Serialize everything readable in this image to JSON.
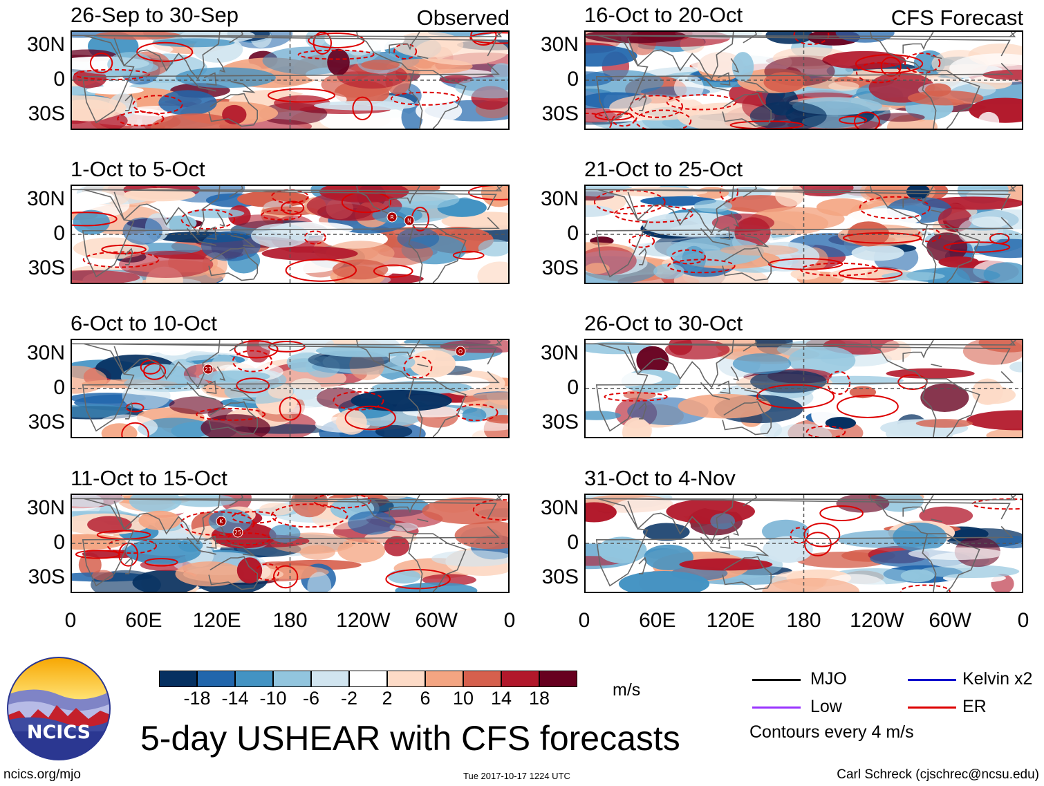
{
  "chart_data": {
    "type": "heatmap",
    "title": "5-day USHEAR with CFS forecasts",
    "variable": "USHEAR",
    "units": "m/s",
    "columns": [
      {
        "label": "Observed",
        "panels": [
          {
            "title": "26-Sep to 30-Sep"
          },
          {
            "title": "1-Oct to 5-Oct"
          },
          {
            "title": "6-Oct to 10-Oct"
          },
          {
            "title": "11-Oct to 15-Oct"
          }
        ]
      },
      {
        "label": "CFS Forecast",
        "panels": [
          {
            "title": "16-Oct to 20-Oct"
          },
          {
            "title": "21-Oct to 25-Oct"
          },
          {
            "title": "26-Oct to 30-Oct"
          },
          {
            "title": "31-Oct to 4-Nov"
          }
        ]
      }
    ],
    "ylabels": [
      "30N",
      "0",
      "30S"
    ],
    "xlabels": [
      "0",
      "60E",
      "120E",
      "180",
      "120W",
      "60W",
      "0"
    ],
    "colorbar": {
      "ticks": [
        "-18",
        "-14",
        "-10",
        "-6",
        "-2",
        "2",
        "6",
        "10",
        "14",
        "18"
      ],
      "colors": [
        "#053061",
        "#2166ac",
        "#4393c3",
        "#92c5de",
        "#d1e5f0",
        "#ffffff",
        "#fddbc7",
        "#f4a582",
        "#d6604d",
        "#b2182b",
        "#67001f"
      ]
    },
    "storm_markers": [
      {
        "panel": 1,
        "label": "R"
      },
      {
        "panel": 1,
        "label": "N"
      },
      {
        "panel": 2,
        "label": "23"
      },
      {
        "panel": 2,
        "label": "O"
      },
      {
        "panel": 3,
        "label": "K"
      },
      {
        "panel": 3,
        "label": "25"
      }
    ],
    "legend": [
      {
        "label": "MJO",
        "color": "#000000"
      },
      {
        "label": "Kelvin x2",
        "color": "#0000cc"
      },
      {
        "label": "Low",
        "color": "#9933ff"
      },
      {
        "label": "ER",
        "color": "#dd0000"
      }
    ],
    "contour_note": "Contours every 4 m/s"
  },
  "footer": {
    "site": "ncics.org/mjo",
    "timestamp": "Tue 2017-10-17 1224 UTC",
    "author": "Carl Schreck (cjschrec@ncsu.edu)",
    "logo_text": "NCICS"
  }
}
